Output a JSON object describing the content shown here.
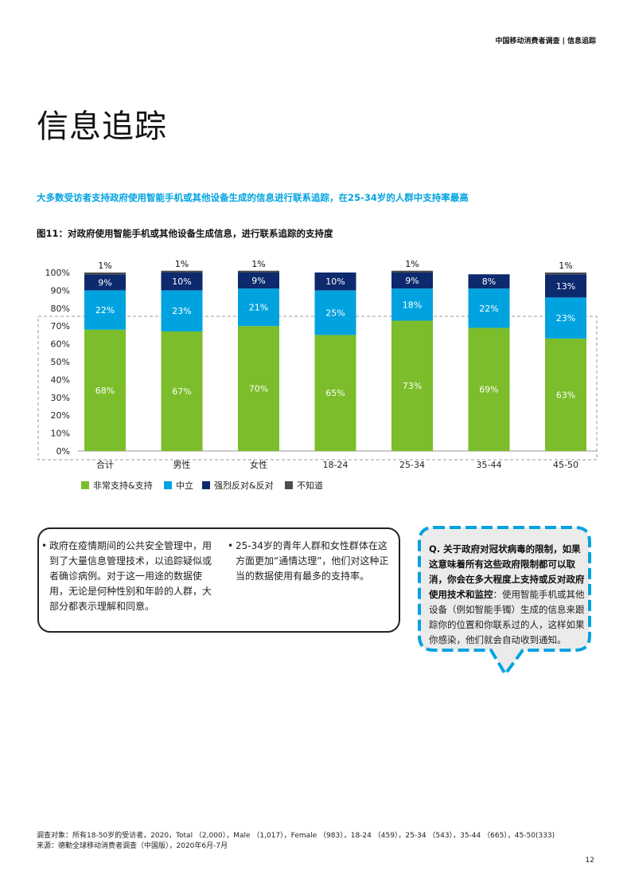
{
  "header": {
    "running_title": "中国移动消费者调查 | 信息追踪"
  },
  "page_title": "信息追踪",
  "highlight_text": "大多数受访者支持政府使用智能手机或其他设备生成的信息进行联系追踪，在25-34岁的人群中支持率最高",
  "figure_title": "图11：对政府使用智能手机或其他设备生成信息，进行联系追踪的支持度",
  "chart_data": {
    "type": "bar",
    "stacked": true,
    "categories": [
      "合计",
      "男性",
      "女性",
      "18-24",
      "25-34",
      "35-44",
      "45-50"
    ],
    "series": [
      {
        "name": "非常支持&支持",
        "values": [
          68,
          67,
          70,
          65,
          73,
          69,
          63
        ],
        "color": "#7bbd2a",
        "labels": [
          "68%",
          "67%",
          "70%",
          "65%",
          "73%",
          "69%",
          "63%"
        ]
      },
      {
        "name": "中立",
        "values": [
          22,
          23,
          21,
          25,
          18,
          22,
          23
        ],
        "color": "#00a3e0",
        "labels": [
          "22%",
          "23%",
          "21%",
          "25%",
          "18%",
          "22%",
          "23%"
        ]
      },
      {
        "name": "强烈反对&反对",
        "values": [
          9,
          10,
          9,
          10,
          9,
          8,
          13
        ],
        "color": "#0d2a6e",
        "labels": [
          "9%",
          "10%",
          "9%",
          "10%",
          "9%",
          "8%",
          "13%"
        ]
      },
      {
        "name": "不知道",
        "values": [
          1,
          1,
          1,
          0,
          1,
          0,
          1
        ],
        "color": "#4d4d4f",
        "labels": [
          "1%",
          "1%",
          "1%",
          "",
          "1%",
          "",
          "1%"
        ]
      }
    ],
    "ylim": [
      0,
      100
    ],
    "yticks": [
      "0%",
      "10%",
      "20%",
      "30%",
      "40%",
      "50%",
      "60%",
      "70%",
      "80%",
      "90%",
      "100%"
    ],
    "legend_position": "bottom-left",
    "grid": false
  },
  "insights": [
    "政府在疫情期间的公共安全管理中，用到了大量信息管理技术，以追踪疑似或者确诊病例。对于这一用途的数据使用，无论是何种性别和年龄的人群，大部分都表示理解和同意。",
    "25-34岁的青年人群和女性群体在这方面更加“通情达理”，他们对这种正当的数据使用有最多的支持率。"
  ],
  "question": {
    "bold": "Q. 关于政府对冠状病毒的限制，如果这意味着所有这些政府限制都可以取消，你会在多大程度上支持或反对政府使用技术和监控",
    "normal": "：使用智能手机或其他设备（例如智能手镯）生成的信息来跟踪你的位置和你联系过的人，这样如果你感染，他们就会自动收到通知。"
  },
  "footnote": {
    "line1": "调查对象：所有18-50岁的受访者，2020，Total （2,000），Male （1,017），Female （983），18-24 （459），25-34 （543），35-44 （665），45-50(333)",
    "line2": "来源：德勤全球移动消费者调查（中国版），2020年6月-7月"
  },
  "page_number": "12"
}
